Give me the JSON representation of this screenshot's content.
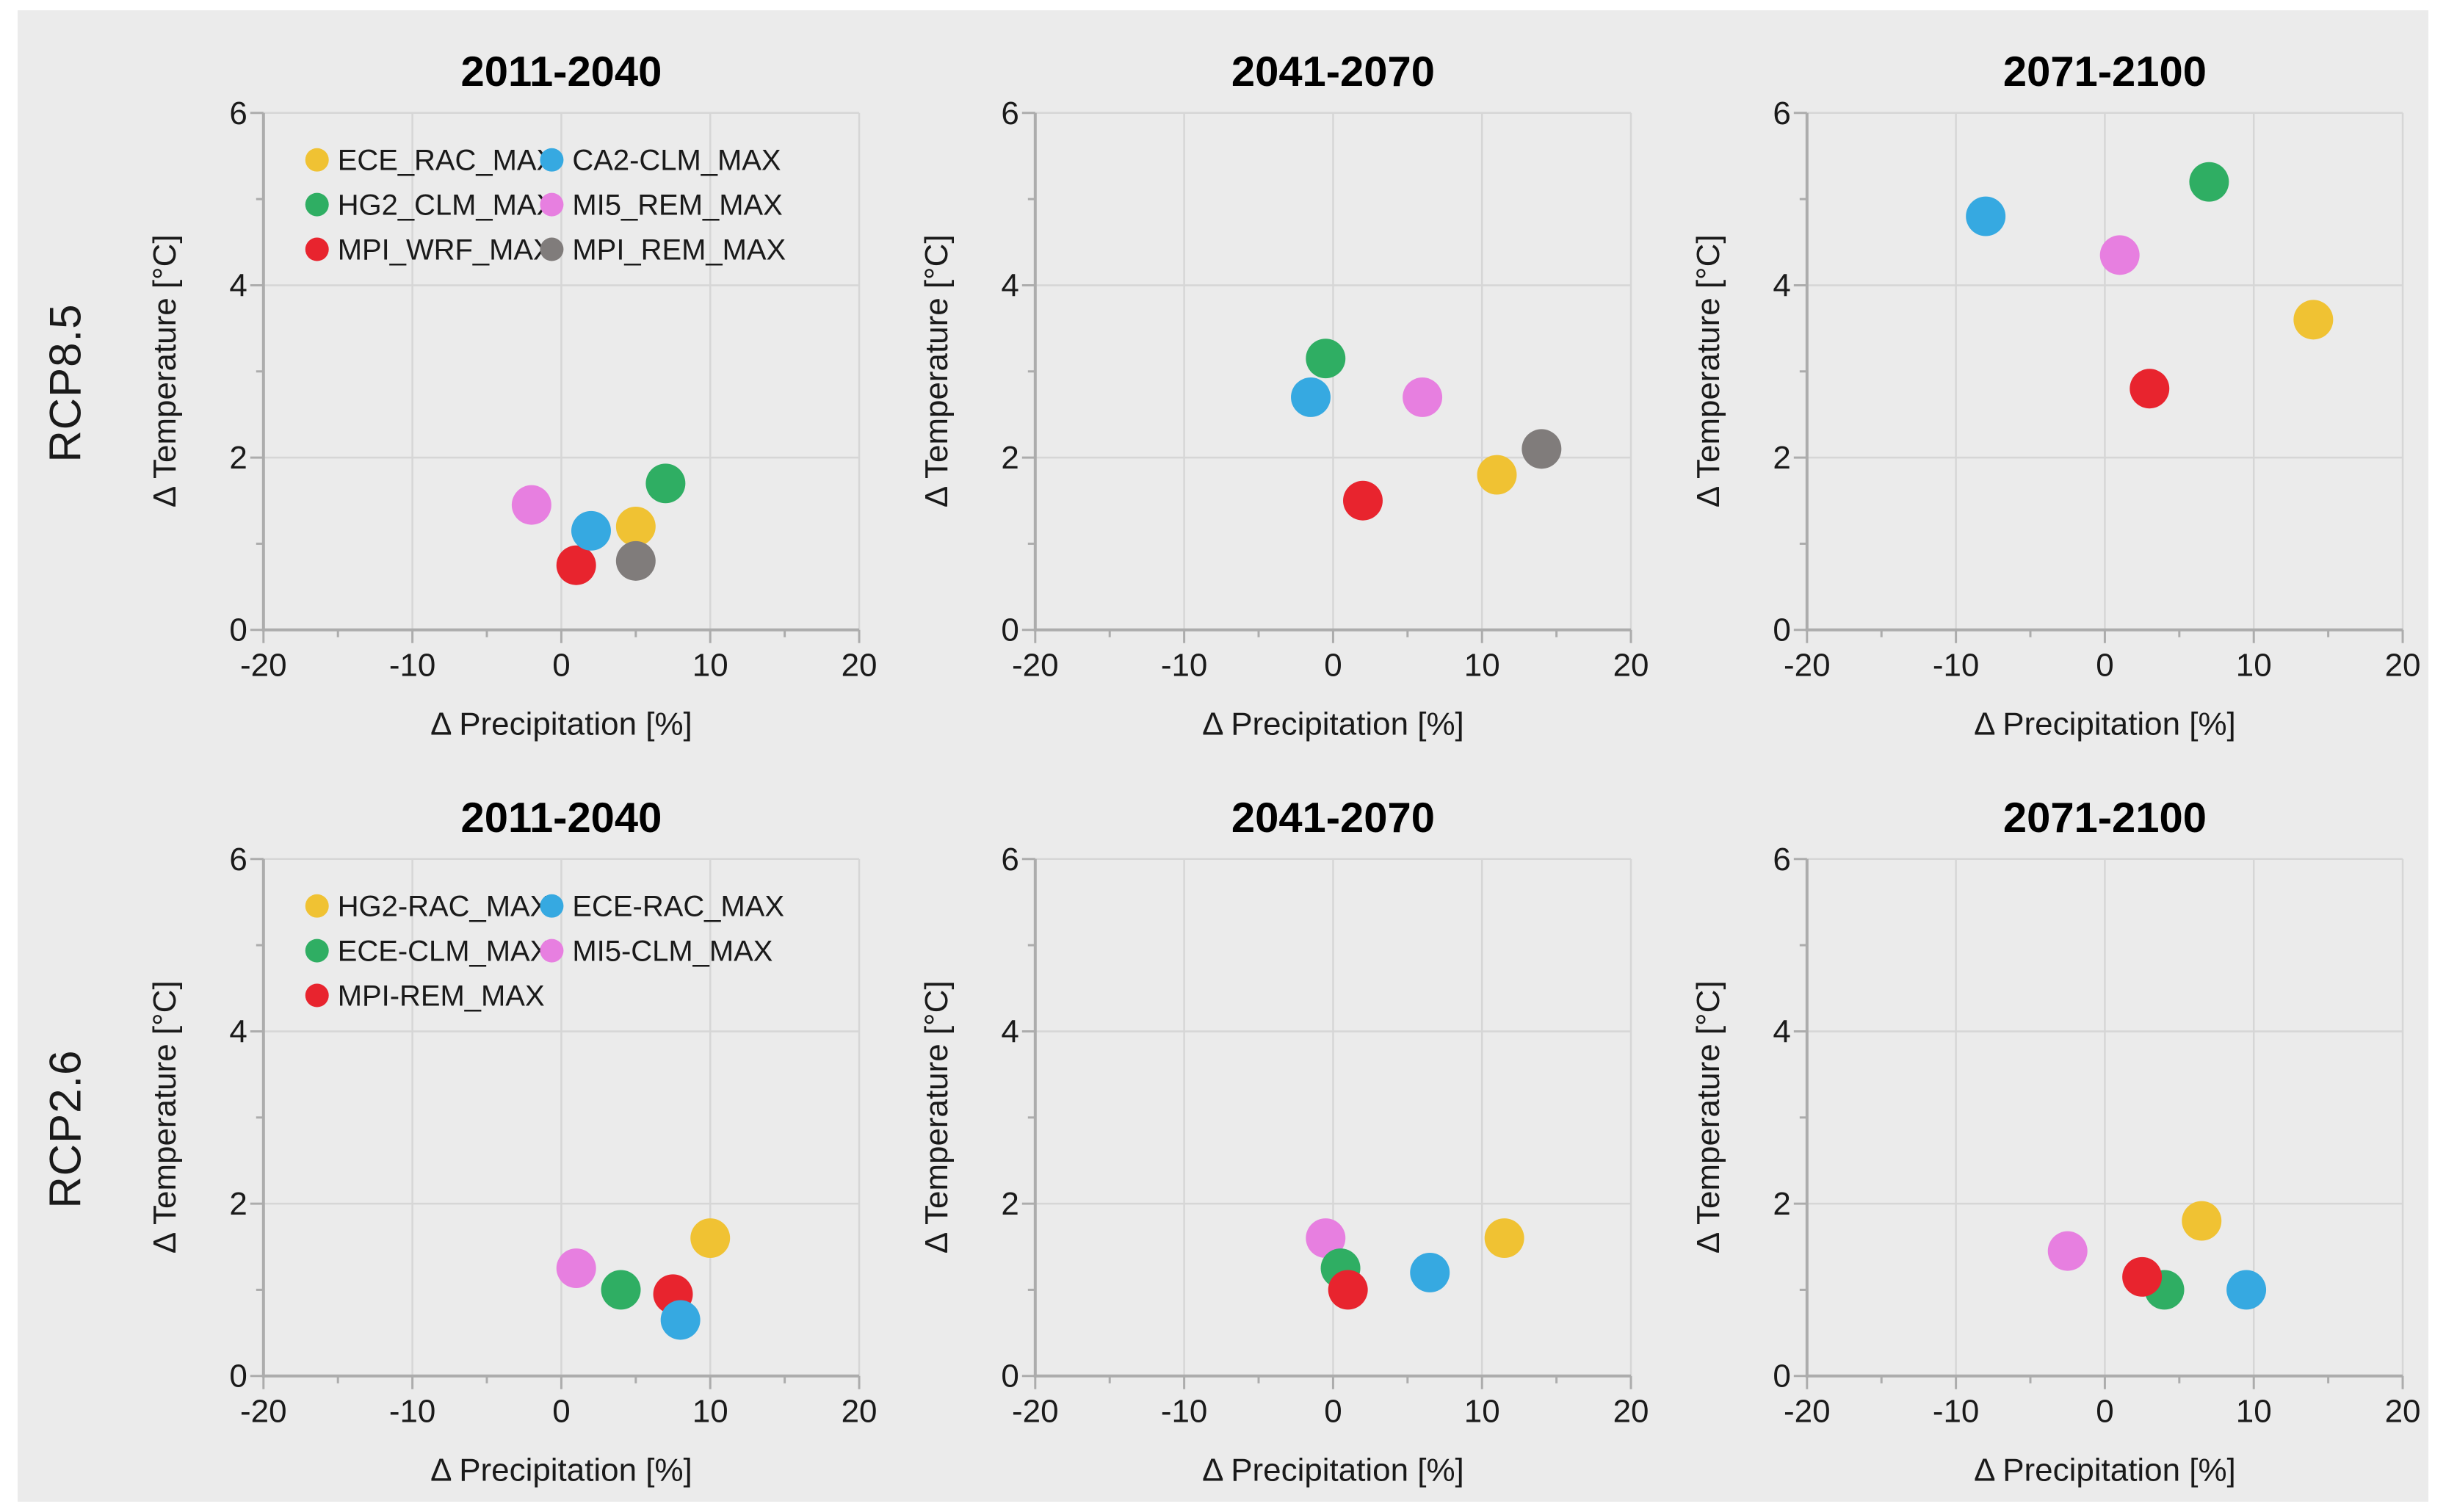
{
  "page": {
    "background": "#ffffff",
    "figure_background": "#ebebeb"
  },
  "style": {
    "gridline": "#d6d6d6",
    "axis": "#acacac",
    "text": "#1a1a1a",
    "point_colors": {
      "yellow": "#F0C233",
      "green": "#2FAE63",
      "red": "#E8242E",
      "blue": "#36A9E1",
      "magenta": "#E77FE0",
      "gray": "#807C7B"
    }
  },
  "rows": [
    {
      "label": "RCP8.5"
    },
    {
      "label": "RCP2.6"
    }
  ],
  "chart_data": [
    {
      "type": "scatter",
      "group": "RCP8.5",
      "title": "2011-2040",
      "xlabel": "Δ Precipitation [%]",
      "ylabel": "Δ Temperature [°C]",
      "xlim": [
        -20,
        20
      ],
      "ylim": [
        0,
        6
      ],
      "xticks": [
        -20,
        -10,
        0,
        10,
        20
      ],
      "xticks_minor": [
        -15,
        -5,
        5,
        15
      ],
      "yticks": [
        0,
        2,
        4,
        6
      ],
      "yticks_minor": [
        1,
        3,
        5
      ],
      "grid_x": [
        -10,
        0,
        10,
        20
      ],
      "grid_y": [
        2,
        4,
        6
      ],
      "legend": {
        "columns": [
          [
            {
              "label": "ECE_RAC_MAX",
              "color": "#F0C233"
            },
            {
              "label": "HG2_CLM_MAX",
              "color": "#2FAE63"
            },
            {
              "label": "MPI_WRF_MAX",
              "color": "#E8242E"
            }
          ],
          [
            {
              "label": "CA2-CLM_MAX",
              "color": "#36A9E1"
            },
            {
              "label": "MI5_REM_MAX",
              "color": "#E77FE0"
            },
            {
              "label": "MPI_REM_MAX",
              "color": "#807C7B"
            }
          ]
        ]
      },
      "series": [
        {
          "name": "MI5_REM_MAX",
          "color": "#E77FE0",
          "x": -2,
          "y": 1.45
        },
        {
          "name": "MPI_WRF_MAX",
          "color": "#E8242E",
          "x": 1,
          "y": 0.75
        },
        {
          "name": "ECE_RAC_MAX",
          "color": "#F0C233",
          "x": 5,
          "y": 1.2
        },
        {
          "name": "CA2-CLM_MAX",
          "color": "#36A9E1",
          "x": 2,
          "y": 1.15
        },
        {
          "name": "HG2_CLM_MAX",
          "color": "#2FAE63",
          "x": 7,
          "y": 1.7
        },
        {
          "name": "MPI_REM_MAX",
          "color": "#807C7B",
          "x": 5,
          "y": 0.8
        }
      ]
    },
    {
      "type": "scatter",
      "group": "RCP8.5",
      "title": "2041-2070",
      "xlabel": "Δ Precipitation [%]",
      "ylabel": "Δ Temperature [°C]",
      "xlim": [
        -20,
        20
      ],
      "ylim": [
        0,
        6
      ],
      "xticks": [
        -20,
        -10,
        0,
        10,
        20
      ],
      "xticks_minor": [
        -15,
        -5,
        5,
        15
      ],
      "yticks": [
        0,
        2,
        4,
        6
      ],
      "yticks_minor": [
        1,
        3,
        5
      ],
      "grid_x": [
        -10,
        0,
        10,
        20
      ],
      "grid_y": [
        2,
        4,
        6
      ],
      "legend": null,
      "series": [
        {
          "name": "MI5_REM_MAX",
          "color": "#E77FE0",
          "x": 6,
          "y": 2.7
        },
        {
          "name": "MPI_WRF_MAX",
          "color": "#E8242E",
          "x": 2,
          "y": 1.5
        },
        {
          "name": "ECE_RAC_MAX",
          "color": "#F0C233",
          "x": 11,
          "y": 1.8
        },
        {
          "name": "CA2-CLM_MAX",
          "color": "#36A9E1",
          "x": -1.5,
          "y": 2.7
        },
        {
          "name": "HG2_CLM_MAX",
          "color": "#2FAE63",
          "x": -0.5,
          "y": 3.15
        },
        {
          "name": "MPI_REM_MAX",
          "color": "#807C7B",
          "x": 14,
          "y": 2.1
        }
      ]
    },
    {
      "type": "scatter",
      "group": "RCP8.5",
      "title": "2071-2100",
      "xlabel": "Δ Precipitation [%]",
      "ylabel": "Δ Temperature [°C]",
      "xlim": [
        -20,
        20
      ],
      "ylim": [
        0,
        6
      ],
      "xticks": [
        -20,
        -10,
        0,
        10,
        20
      ],
      "xticks_minor": [
        -15,
        -5,
        5,
        15
      ],
      "yticks": [
        0,
        2,
        4,
        6
      ],
      "yticks_minor": [
        1,
        3,
        5
      ],
      "grid_x": [
        -10,
        0,
        10,
        20
      ],
      "grid_y": [
        2,
        4,
        6
      ],
      "legend": null,
      "series": [
        {
          "name": "MI5_REM_MAX",
          "color": "#E77FE0",
          "x": 1,
          "y": 4.35
        },
        {
          "name": "MPI_WRF_MAX",
          "color": "#E8242E",
          "x": 3,
          "y": 2.8
        },
        {
          "name": "ECE_RAC_MAX",
          "color": "#F0C233",
          "x": 14,
          "y": 3.6
        },
        {
          "name": "CA2-CLM_MAX",
          "color": "#36A9E1",
          "x": -8,
          "y": 4.8
        },
        {
          "name": "HG2_CLM_MAX",
          "color": "#2FAE63",
          "x": 7,
          "y": 5.2
        }
      ]
    },
    {
      "type": "scatter",
      "group": "RCP2.6",
      "title": "2011-2040",
      "xlabel": "Δ Precipitation [%]",
      "ylabel": "Δ Temperature [°C]",
      "xlim": [
        -20,
        20
      ],
      "ylim": [
        0,
        6
      ],
      "xticks": [
        -20,
        -10,
        0,
        10,
        20
      ],
      "xticks_minor": [
        -15,
        -5,
        5,
        15
      ],
      "yticks": [
        0,
        2,
        4,
        6
      ],
      "yticks_minor": [
        1,
        3,
        5
      ],
      "grid_x": [
        -10,
        0,
        10,
        20
      ],
      "grid_y": [
        2,
        4,
        6
      ],
      "legend": {
        "columns": [
          [
            {
              "label": "HG2-RAC_MAX",
              "color": "#F0C233"
            },
            {
              "label": "ECE-CLM_MAX",
              "color": "#2FAE63"
            },
            {
              "label": "MPI-REM_MAX",
              "color": "#E8242E"
            }
          ],
          [
            {
              "label": "ECE-RAC_MAX",
              "color": "#36A9E1"
            },
            {
              "label": "MI5-CLM_MAX",
              "color": "#E77FE0"
            }
          ]
        ]
      },
      "series": [
        {
          "name": "MI5-CLM_MAX",
          "color": "#E77FE0",
          "x": 1,
          "y": 1.25
        },
        {
          "name": "ECE-CLM_MAX",
          "color": "#2FAE63",
          "x": 4,
          "y": 1.0
        },
        {
          "name": "HG2-RAC_MAX",
          "color": "#F0C233",
          "x": 10,
          "y": 1.6
        },
        {
          "name": "MPI-REM_MAX",
          "color": "#E8242E",
          "x": 7.5,
          "y": 0.95
        },
        {
          "name": "ECE-RAC_MAX",
          "color": "#36A9E1",
          "x": 8,
          "y": 0.65
        }
      ]
    },
    {
      "type": "scatter",
      "group": "RCP2.6",
      "title": "2041-2070",
      "xlabel": "Δ Precipitation [%]",
      "ylabel": "Δ Temperature [°C]",
      "xlim": [
        -20,
        20
      ],
      "ylim": [
        0,
        6
      ],
      "xticks": [
        -20,
        -10,
        0,
        10,
        20
      ],
      "xticks_minor": [
        -15,
        -5,
        5,
        15
      ],
      "yticks": [
        0,
        2,
        4,
        6
      ],
      "yticks_minor": [
        1,
        3,
        5
      ],
      "grid_x": [
        -10,
        0,
        10,
        20
      ],
      "grid_y": [
        2,
        4,
        6
      ],
      "legend": null,
      "series": [
        {
          "name": "MI5-CLM_MAX",
          "color": "#E77FE0",
          "x": -0.5,
          "y": 1.6
        },
        {
          "name": "ECE-CLM_MAX",
          "color": "#2FAE63",
          "x": 0.5,
          "y": 1.25
        },
        {
          "name": "HG2-RAC_MAX",
          "color": "#F0C233",
          "x": 11.5,
          "y": 1.6
        },
        {
          "name": "MPI-REM_MAX",
          "color": "#E8242E",
          "x": 1,
          "y": 1.0
        },
        {
          "name": "ECE-RAC_MAX",
          "color": "#36A9E1",
          "x": 6.5,
          "y": 1.2
        }
      ]
    },
    {
      "type": "scatter",
      "group": "RCP2.6",
      "title": "2071-2100",
      "xlabel": "Δ Precipitation [%]",
      "ylabel": "Δ Temperature [°C]",
      "xlim": [
        -20,
        20
      ],
      "ylim": [
        0,
        6
      ],
      "xticks": [
        -20,
        -10,
        0,
        10,
        20
      ],
      "xticks_minor": [
        -15,
        -5,
        5,
        15
      ],
      "yticks": [
        0,
        2,
        4,
        6
      ],
      "yticks_minor": [
        1,
        3,
        5
      ],
      "grid_x": [
        -10,
        0,
        10,
        20
      ],
      "grid_y": [
        2,
        4,
        6
      ],
      "legend": null,
      "series": [
        {
          "name": "MI5-CLM_MAX",
          "color": "#E77FE0",
          "x": -2.5,
          "y": 1.45
        },
        {
          "name": "ECE-CLM_MAX",
          "color": "#2FAE63",
          "x": 4,
          "y": 1.0
        },
        {
          "name": "HG2-RAC_MAX",
          "color": "#F0C233",
          "x": 6.5,
          "y": 1.8
        },
        {
          "name": "MPI-REM_MAX",
          "color": "#E8242E",
          "x": 2.5,
          "y": 1.15
        },
        {
          "name": "ECE-RAC_MAX",
          "color": "#36A9E1",
          "x": 9.5,
          "y": 1.0
        }
      ]
    }
  ]
}
